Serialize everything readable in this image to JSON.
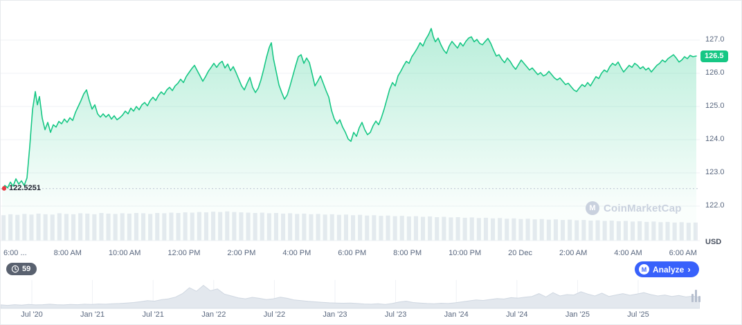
{
  "toolbar": {
    "history_count": "59",
    "analyze_label": "Analyze",
    "analyze_chevron": "›",
    "logo_letter": "M"
  },
  "watermark": {
    "text": "CoinMarketCap",
    "logo_letter": "M"
  },
  "chart_data": {
    "type": "area",
    "title": "",
    "xlabel": "",
    "ylabel": "USD",
    "unit": "USD",
    "line_color": "#16c784",
    "accent_blue": "#3861fb",
    "marker_red": "#ea3943",
    "current_price": 126.5,
    "current_price_label": "126.5",
    "previous_close": 122.5251,
    "previous_close_label": "122.5251",
    "ylim": [
      121.85,
      127.75
    ],
    "grid": true,
    "y_ticks": [
      127.0,
      126.0,
      125.0,
      124.0,
      123.0,
      122.0
    ],
    "y_tick_labels": [
      "127.0",
      "126.0",
      "125.0",
      "124.0",
      "123.0",
      "122.0"
    ],
    "x_ticks": [
      "6:00 ...",
      "8:00 AM",
      "10:00 AM",
      "12:00 PM",
      "2:00 PM",
      "4:00 PM",
      "6:00 PM",
      "8:00 PM",
      "10:00 PM",
      "20 Dec",
      "2:00 AM",
      "4:00 AM",
      "6:00 AM"
    ],
    "series": [
      {
        "name": "price-usd",
        "points": [
          [
            2,
            122.52
          ],
          [
            6,
            122.62
          ],
          [
            10,
            122.55
          ],
          [
            14,
            122.72
          ],
          [
            18,
            122.6
          ],
          [
            22,
            122.82
          ],
          [
            26,
            122.66
          ],
          [
            30,
            122.76
          ],
          [
            34,
            122.62
          ],
          [
            38,
            122.85
          ],
          [
            42,
            123.8
          ],
          [
            46,
            124.9
          ],
          [
            50,
            125.45
          ],
          [
            53,
            125.05
          ],
          [
            56,
            125.3
          ],
          [
            60,
            124.65
          ],
          [
            64,
            124.3
          ],
          [
            68,
            124.52
          ],
          [
            72,
            124.22
          ],
          [
            76,
            124.45
          ],
          [
            80,
            124.38
          ],
          [
            84,
            124.55
          ],
          [
            88,
            124.48
          ],
          [
            92,
            124.62
          ],
          [
            96,
            124.52
          ],
          [
            100,
            124.66
          ],
          [
            104,
            124.58
          ],
          [
            108,
            124.82
          ],
          [
            112,
            125.0
          ],
          [
            116,
            125.18
          ],
          [
            120,
            125.38
          ],
          [
            124,
            125.5
          ],
          [
            128,
            125.18
          ],
          [
            132,
            124.92
          ],
          [
            136,
            125.05
          ],
          [
            140,
            124.78
          ],
          [
            144,
            124.68
          ],
          [
            148,
            124.78
          ],
          [
            152,
            124.68
          ],
          [
            156,
            124.76
          ],
          [
            160,
            124.62
          ],
          [
            164,
            124.72
          ],
          [
            168,
            124.6
          ],
          [
            172,
            124.66
          ],
          [
            176,
            124.74
          ],
          [
            180,
            124.86
          ],
          [
            184,
            124.78
          ],
          [
            188,
            124.95
          ],
          [
            192,
            124.86
          ],
          [
            196,
            125.0
          ],
          [
            200,
            124.9
          ],
          [
            204,
            125.05
          ],
          [
            208,
            125.12
          ],
          [
            212,
            125.02
          ],
          [
            216,
            125.18
          ],
          [
            220,
            125.28
          ],
          [
            224,
            125.18
          ],
          [
            228,
            125.34
          ],
          [
            232,
            125.44
          ],
          [
            236,
            125.36
          ],
          [
            240,
            125.5
          ],
          [
            244,
            125.58
          ],
          [
            248,
            125.48
          ],
          [
            252,
            125.62
          ],
          [
            256,
            125.7
          ],
          [
            260,
            125.82
          ],
          [
            264,
            125.72
          ],
          [
            268,
            125.9
          ],
          [
            272,
            126.02
          ],
          [
            276,
            126.14
          ],
          [
            280,
            126.24
          ],
          [
            284,
            126.08
          ],
          [
            288,
            125.92
          ],
          [
            292,
            125.76
          ],
          [
            296,
            125.9
          ],
          [
            300,
            126.06
          ],
          [
            304,
            126.18
          ],
          [
            308,
            126.3
          ],
          [
            312,
            126.18
          ],
          [
            316,
            126.3
          ],
          [
            320,
            126.36
          ],
          [
            324,
            126.16
          ],
          [
            328,
            126.28
          ],
          [
            332,
            126.08
          ],
          [
            336,
            126.2
          ],
          [
            340,
            126.02
          ],
          [
            344,
            125.82
          ],
          [
            348,
            125.62
          ],
          [
            352,
            125.5
          ],
          [
            356,
            125.7
          ],
          [
            360,
            125.88
          ],
          [
            364,
            125.58
          ],
          [
            368,
            125.42
          ],
          [
            372,
            125.55
          ],
          [
            376,
            125.8
          ],
          [
            380,
            126.12
          ],
          [
            384,
            126.48
          ],
          [
            388,
            126.78
          ],
          [
            391,
            126.92
          ],
          [
            394,
            126.45
          ],
          [
            398,
            126.05
          ],
          [
            402,
            125.65
          ],
          [
            406,
            125.42
          ],
          [
            410,
            125.22
          ],
          [
            414,
            125.35
          ],
          [
            418,
            125.62
          ],
          [
            422,
            125.92
          ],
          [
            426,
            126.22
          ],
          [
            430,
            126.5
          ],
          [
            434,
            126.56
          ],
          [
            438,
            126.3
          ],
          [
            442,
            126.46
          ],
          [
            446,
            126.32
          ],
          [
            450,
            125.98
          ],
          [
            454,
            125.62
          ],
          [
            458,
            125.76
          ],
          [
            462,
            125.92
          ],
          [
            466,
            125.7
          ],
          [
            470,
            125.48
          ],
          [
            474,
            125.28
          ],
          [
            478,
            124.88
          ],
          [
            482,
            124.62
          ],
          [
            486,
            124.48
          ],
          [
            490,
            124.6
          ],
          [
            494,
            124.38
          ],
          [
            498,
            124.22
          ],
          [
            502,
            124.02
          ],
          [
            506,
            123.95
          ],
          [
            510,
            124.22
          ],
          [
            514,
            124.1
          ],
          [
            518,
            124.36
          ],
          [
            522,
            124.52
          ],
          [
            526,
            124.3
          ],
          [
            530,
            124.15
          ],
          [
            534,
            124.22
          ],
          [
            538,
            124.42
          ],
          [
            542,
            124.56
          ],
          [
            546,
            124.45
          ],
          [
            550,
            124.66
          ],
          [
            554,
            124.92
          ],
          [
            558,
            125.22
          ],
          [
            562,
            125.52
          ],
          [
            566,
            125.72
          ],
          [
            570,
            125.62
          ],
          [
            574,
            125.92
          ],
          [
            578,
            126.06
          ],
          [
            582,
            126.22
          ],
          [
            586,
            126.36
          ],
          [
            590,
            126.3
          ],
          [
            594,
            126.5
          ],
          [
            598,
            126.62
          ],
          [
            602,
            126.76
          ],
          [
            606,
            126.92
          ],
          [
            610,
            126.82
          ],
          [
            614,
            127.02
          ],
          [
            618,
            127.16
          ],
          [
            622,
            127.35
          ],
          [
            625,
            127.1
          ],
          [
            628,
            126.95
          ],
          [
            632,
            127.06
          ],
          [
            636,
            126.86
          ],
          [
            640,
            126.7
          ],
          [
            644,
            126.6
          ],
          [
            648,
            126.82
          ],
          [
            652,
            126.96
          ],
          [
            656,
            126.86
          ],
          [
            660,
            126.76
          ],
          [
            664,
            126.92
          ],
          [
            668,
            126.82
          ],
          [
            672,
            126.96
          ],
          [
            676,
            127.06
          ],
          [
            680,
            127.1
          ],
          [
            684,
            126.95
          ],
          [
            688,
            127.02
          ],
          [
            692,
            126.9
          ],
          [
            696,
            126.86
          ],
          [
            700,
            126.96
          ],
          [
            704,
            127.05
          ],
          [
            708,
            126.9
          ],
          [
            712,
            126.7
          ],
          [
            716,
            126.52
          ],
          [
            720,
            126.56
          ],
          [
            724,
            126.42
          ],
          [
            728,
            126.32
          ],
          [
            732,
            126.46
          ],
          [
            736,
            126.36
          ],
          [
            740,
            126.22
          ],
          [
            744,
            126.12
          ],
          [
            748,
            126.26
          ],
          [
            752,
            126.4
          ],
          [
            756,
            126.3
          ],
          [
            760,
            126.2
          ],
          [
            764,
            126.1
          ],
          [
            768,
            126.16
          ],
          [
            772,
            126.06
          ],
          [
            776,
            125.96
          ],
          [
            780,
            126.02
          ],
          [
            784,
            125.92
          ],
          [
            788,
            125.96
          ],
          [
            792,
            126.06
          ],
          [
            796,
            125.96
          ],
          [
            800,
            125.86
          ],
          [
            804,
            125.8
          ],
          [
            808,
            125.86
          ],
          [
            812,
            125.76
          ],
          [
            816,
            125.66
          ],
          [
            820,
            125.7
          ],
          [
            824,
            125.6
          ],
          [
            828,
            125.5
          ],
          [
            832,
            125.45
          ],
          [
            836,
            125.56
          ],
          [
            840,
            125.66
          ],
          [
            844,
            125.6
          ],
          [
            848,
            125.72
          ],
          [
            852,
            125.62
          ],
          [
            856,
            125.76
          ],
          [
            860,
            125.9
          ],
          [
            864,
            125.84
          ],
          [
            868,
            126.0
          ],
          [
            872,
            126.1
          ],
          [
            876,
            126.04
          ],
          [
            880,
            126.2
          ],
          [
            884,
            126.3
          ],
          [
            888,
            126.24
          ],
          [
            892,
            126.34
          ],
          [
            896,
            126.18
          ],
          [
            900,
            126.04
          ],
          [
            904,
            126.14
          ],
          [
            908,
            126.24
          ],
          [
            912,
            126.18
          ],
          [
            916,
            126.3
          ],
          [
            920,
            126.24
          ],
          [
            924,
            126.14
          ],
          [
            928,
            126.2
          ],
          [
            932,
            126.1
          ],
          [
            936,
            126.16
          ],
          [
            940,
            126.04
          ],
          [
            944,
            126.14
          ],
          [
            948,
            126.24
          ],
          [
            952,
            126.3
          ],
          [
            956,
            126.4
          ],
          [
            960,
            126.34
          ],
          [
            964,
            126.44
          ],
          [
            968,
            126.5
          ],
          [
            972,
            126.56
          ],
          [
            976,
            126.46
          ],
          [
            980,
            126.34
          ],
          [
            984,
            126.4
          ],
          [
            988,
            126.5
          ],
          [
            992,
            126.44
          ],
          [
            996,
            126.54
          ],
          [
            1000,
            126.5
          ],
          [
            1005,
            126.52
          ]
        ]
      }
    ],
    "volume_bars": [
      0.8,
      0.83,
      0.81,
      0.84,
      0.82,
      0.85,
      0.83,
      0.82,
      0.86,
      0.84,
      0.83,
      0.86,
      0.85,
      0.83,
      0.87,
      0.85,
      0.84,
      0.86,
      0.85,
      0.87,
      0.86,
      0.84,
      0.87,
      0.86,
      0.88,
      0.87,
      0.89,
      0.88,
      0.9,
      0.89,
      0.91,
      0.9,
      0.92,
      0.9,
      0.89,
      0.88,
      0.87,
      0.88,
      0.86,
      0.87,
      0.85,
      0.86,
      0.84,
      0.85,
      0.83,
      0.84,
      0.82,
      0.83,
      0.81,
      0.82,
      0.8,
      0.81,
      0.79,
      0.8,
      0.78,
      0.79,
      0.77,
      0.78,
      0.76,
      0.77,
      0.75,
      0.76,
      0.74,
      0.75,
      0.73,
      0.74,
      0.72,
      0.73,
      0.71,
      0.72,
      0.7,
      0.71,
      0.69,
      0.7,
      0.68,
      0.69,
      0.67,
      0.68,
      0.66,
      0.67,
      0.65,
      0.66,
      0.64,
      0.65,
      0.63,
      0.64,
      0.62,
      0.63,
      0.61,
      0.62,
      0.6,
      0.61,
      0.59,
      0.6,
      0.58,
      0.59,
      0.57,
      0.58,
      0.56,
      0.57
    ],
    "range_selector": {
      "labels": [
        "Jul '20",
        "Jan '21",
        "Jul '21",
        "Jan '22",
        "Jul '22",
        "Jan '23",
        "Jul '23",
        "Jan '24",
        "Jul '24",
        "Jan '25",
        "Jul '25"
      ],
      "values": [
        0.12,
        0.1,
        0.13,
        0.11,
        0.14,
        0.12,
        0.13,
        0.15,
        0.13,
        0.12,
        0.14,
        0.13,
        0.15,
        0.14,
        0.16,
        0.15,
        0.17,
        0.18,
        0.2,
        0.22,
        0.26,
        0.3,
        0.28,
        0.34,
        0.38,
        0.45,
        0.6,
        0.85,
        0.7,
        0.95,
        0.72,
        0.8,
        0.58,
        0.5,
        0.42,
        0.38,
        0.44,
        0.4,
        0.35,
        0.38,
        0.45,
        0.4,
        0.33,
        0.3,
        0.27,
        0.25,
        0.23,
        0.21,
        0.2,
        0.19,
        0.2,
        0.18,
        0.16,
        0.15,
        0.17,
        0.14,
        0.18,
        0.24,
        0.28,
        0.22,
        0.2,
        0.18,
        0.17,
        0.19,
        0.18,
        0.21,
        0.25,
        0.29,
        0.33,
        0.31,
        0.35,
        0.39,
        0.37,
        0.43,
        0.41,
        0.45,
        0.48,
        0.6,
        0.46,
        0.64,
        0.5,
        0.56,
        0.54,
        0.68,
        0.58,
        0.5,
        0.62,
        0.48,
        0.54,
        0.6,
        0.53,
        0.58,
        0.64,
        0.56,
        0.5,
        0.54,
        0.48,
        0.52,
        0.46,
        0.49,
        0.44
      ]
    }
  }
}
